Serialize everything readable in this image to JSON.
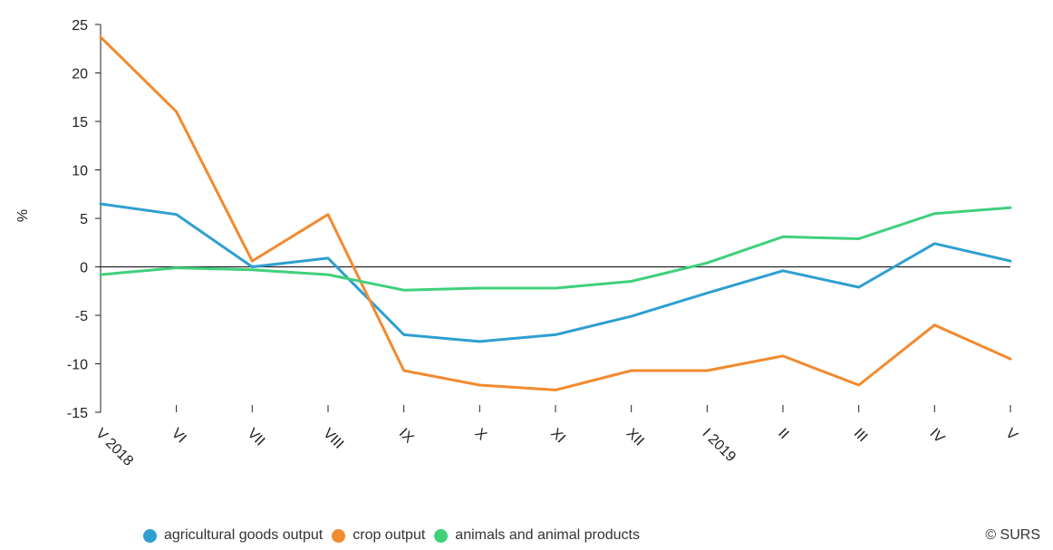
{
  "chart_data": {
    "type": "line",
    "title": "",
    "xlabel": "",
    "ylabel": "%",
    "categories": [
      "V 2018",
      "VI",
      "VII",
      "VIII",
      "IX",
      "X",
      "XI",
      "XII",
      "I 2019",
      "II",
      "III",
      "IV",
      "V"
    ],
    "ylim": [
      -15,
      25
    ],
    "yticks": [
      25,
      20,
      15,
      10,
      5,
      0,
      -5,
      -10,
      -15
    ],
    "grid": false,
    "legend_position": "bottom",
    "series": [
      {
        "name": "agricultural goods output",
        "color": "#2e9fd0",
        "values": [
          6.5,
          5.4,
          0.0,
          0.9,
          -7.0,
          -7.7,
          -7.0,
          -5.1,
          -2.7,
          -0.4,
          -2.1,
          2.4,
          0.6
        ]
      },
      {
        "name": "crop output",
        "color": "#f28a2e",
        "values": [
          23.7,
          16.0,
          0.6,
          5.4,
          -10.7,
          -12.2,
          -12.7,
          -10.7,
          -10.7,
          -9.2,
          -12.2,
          -6.0,
          -9.5
        ]
      },
      {
        "name": "animals and animal products",
        "color": "#3fd07a",
        "values": [
          -0.8,
          -0.1,
          -0.3,
          -0.8,
          -2.4,
          -2.2,
          -2.2,
          -1.5,
          0.4,
          3.1,
          2.9,
          5.5,
          6.1
        ]
      }
    ]
  },
  "credit": "© SURS"
}
